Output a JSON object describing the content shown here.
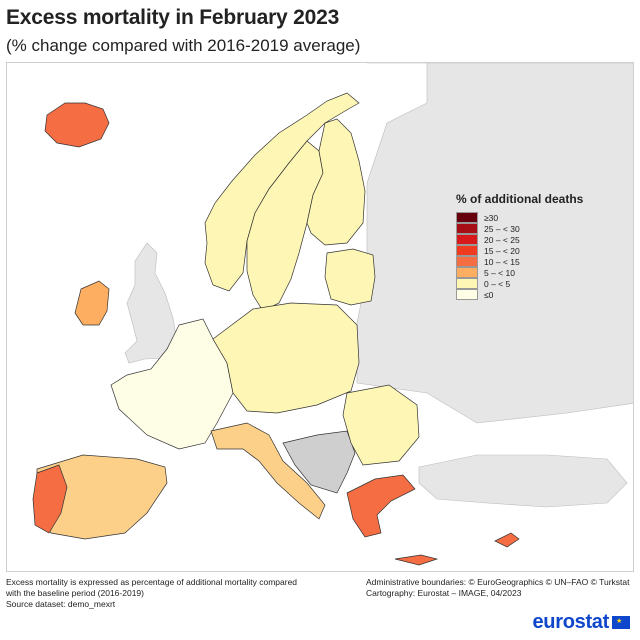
{
  "title": "Excess mortality in February 2023",
  "subtitle": "(% change compared with 2016-2019 average)",
  "legend": {
    "title": "% of additional deaths",
    "items": [
      {
        "label": "≥30",
        "color": "#67000d"
      },
      {
        "label": "25 – < 30",
        "color": "#a50f15"
      },
      {
        "label": "20 – < 25",
        "color": "#d7191c"
      },
      {
        "label": "15 – < 20",
        "color": "#f03b20"
      },
      {
        "label": "10 – < 15",
        "color": "#f46d43"
      },
      {
        "label": "5 – < 10",
        "color": "#fdae61"
      },
      {
        "label": "0 – < 5",
        "color": "#fef6b5"
      },
      {
        "label": "≤0",
        "color": "#fefee6"
      }
    ]
  },
  "colors": {
    "no_data": "#cfcfcf",
    "non_eu": "#e6e6e6",
    "sea": "#ffffff",
    "border": "#333333"
  },
  "footnote": {
    "line1": "Excess mortality is expressed as percentage of additional mortality compared",
    "line2": "with the baseline period (2016-2019)",
    "line3": "Source dataset: demo_mexrt"
  },
  "credits": {
    "line1": "Administrative boundaries: © EuroGeographics © UN–FAO © Turkstat",
    "line2": "Cartography: Eurostat – IMAGE, 04/2023"
  },
  "logo": {
    "text": "eurostat"
  }
}
